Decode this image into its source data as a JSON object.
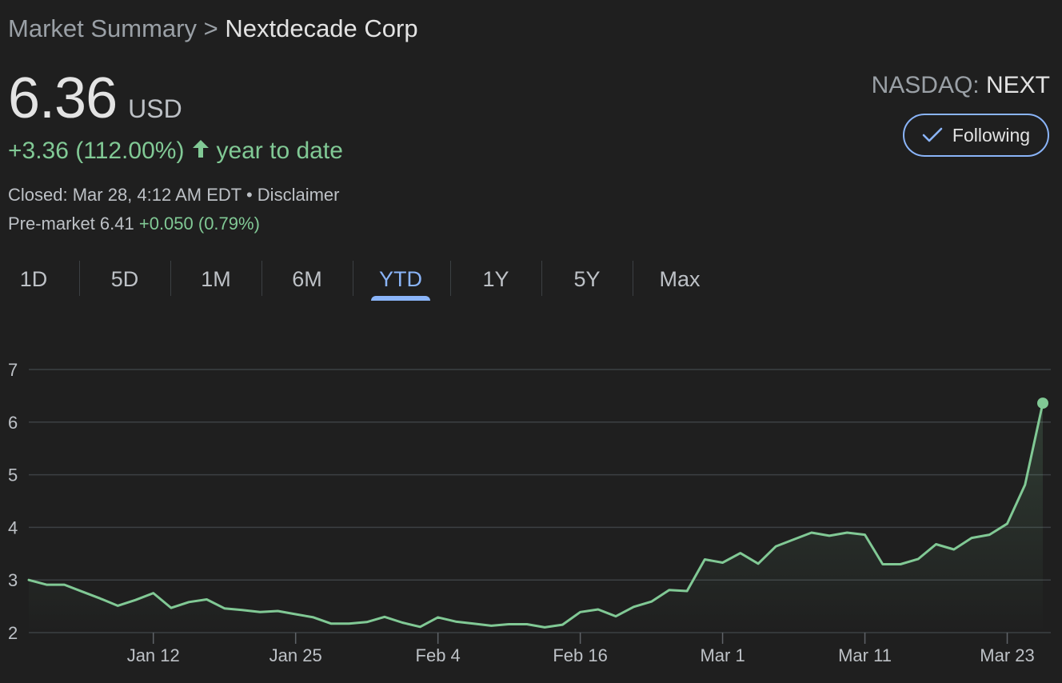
{
  "breadcrumb": {
    "parent": "Market Summary",
    "separator": ">",
    "current": "Nextdecade Corp"
  },
  "quote": {
    "price": "6.36",
    "currency": "USD",
    "change": "+3.36 (112.00%)",
    "change_period": "year to date",
    "closed_text": "Closed: Mar 28, 4:12 AM EDT",
    "bullet": "•",
    "disclaimer": "Disclaimer",
    "premarket_label": "Pre-market 6.41",
    "premarket_change": "+0.050 (0.79%)"
  },
  "exchange": {
    "name": "NASDAQ:",
    "ticker": "NEXT"
  },
  "follow_button": {
    "label": "Following",
    "icon": "check-icon"
  },
  "tabs": [
    {
      "label": "1D",
      "active": false
    },
    {
      "label": "5D",
      "active": false
    },
    {
      "label": "1M",
      "active": false
    },
    {
      "label": "6M",
      "active": false
    },
    {
      "label": "YTD",
      "active": true
    },
    {
      "label": "1Y",
      "active": false
    },
    {
      "label": "5Y",
      "active": false
    },
    {
      "label": "Max",
      "active": false
    }
  ],
  "colors": {
    "background": "#1f1f1f",
    "positive": "#81c995",
    "accent": "#8ab4f8",
    "grid": "#3c4043"
  },
  "chart_data": {
    "type": "line",
    "ylim": [
      2,
      7
    ],
    "y_ticks": [
      2,
      3,
      4,
      5,
      6,
      7
    ],
    "x_ticks": [
      {
        "label": "Jan 12",
        "index": 7
      },
      {
        "label": "Jan 25",
        "index": 15
      },
      {
        "label": "Feb 4",
        "index": 23
      },
      {
        "label": "Feb 16",
        "index": 31
      },
      {
        "label": "Mar 1",
        "index": 39
      },
      {
        "label": "Mar 11",
        "index": 47
      },
      {
        "label": "Mar 23",
        "index": 55
      }
    ],
    "values": [
      3.0,
      2.91,
      2.91,
      2.78,
      2.65,
      2.51,
      2.62,
      2.75,
      2.47,
      2.58,
      2.63,
      2.46,
      2.43,
      2.39,
      2.41,
      2.35,
      2.29,
      2.17,
      2.17,
      2.2,
      2.3,
      2.19,
      2.11,
      2.29,
      2.21,
      2.17,
      2.13,
      2.16,
      2.16,
      2.1,
      2.15,
      2.39,
      2.44,
      2.31,
      2.49,
      2.59,
      2.81,
      2.79,
      3.39,
      3.33,
      3.51,
      3.31,
      3.64,
      3.77,
      3.9,
      3.84,
      3.9,
      3.86,
      3.3,
      3.3,
      3.4,
      3.68,
      3.58,
      3.8,
      3.86,
      4.07,
      4.81,
      6.36
    ],
    "line_color": "#81c995",
    "grid": true,
    "end_marker": true
  }
}
